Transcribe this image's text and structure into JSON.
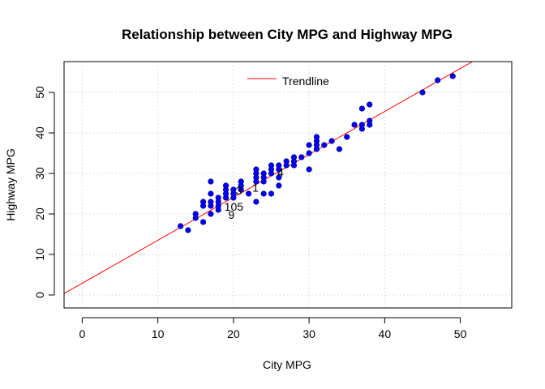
{
  "chart_data": {
    "type": "scatter",
    "title": "Relationship between City MPG and Highway MPG",
    "xlabel": "City MPG",
    "ylabel": "Highway MPG",
    "xlim": [
      -2.4,
      56.8
    ],
    "ylim": [
      -3.2,
      57.6
    ],
    "x_ticks": [
      0,
      10,
      20,
      30,
      40,
      50
    ],
    "y_ticks": [
      0,
      10,
      20,
      30,
      40,
      50
    ],
    "grid": true,
    "legend": {
      "position": "top-center",
      "entries": [
        "Trendline"
      ]
    },
    "trendline": {
      "color": "#ff0000",
      "intercept": 2.9,
      "slope": 1.06
    },
    "point_color": "#0000ff",
    "series": [
      {
        "points": [
          [
            13,
            17
          ],
          [
            14,
            16
          ],
          [
            15,
            19
          ],
          [
            15,
            20
          ],
          [
            16,
            18
          ],
          [
            16,
            22
          ],
          [
            16,
            23
          ],
          [
            17,
            20
          ],
          [
            17,
            22
          ],
          [
            17,
            23
          ],
          [
            17,
            25
          ],
          [
            17,
            28
          ],
          [
            18,
            21
          ],
          [
            18,
            22
          ],
          [
            18,
            23
          ],
          [
            18,
            24
          ],
          [
            19,
            24
          ],
          [
            19,
            25
          ],
          [
            19,
            26
          ],
          [
            19,
            27
          ],
          [
            20,
            24
          ],
          [
            20,
            25
          ],
          [
            20,
            26
          ],
          [
            21,
            26
          ],
          [
            21,
            27
          ],
          [
            21,
            28
          ],
          [
            22,
            25
          ],
          [
            23,
            23
          ],
          [
            23,
            28
          ],
          [
            23,
            29
          ],
          [
            23,
            30
          ],
          [
            23,
            31
          ],
          [
            24,
            25
          ],
          [
            24,
            28
          ],
          [
            24,
            29
          ],
          [
            24,
            30
          ],
          [
            25,
            25
          ],
          [
            25,
            30
          ],
          [
            25,
            31
          ],
          [
            25,
            32
          ],
          [
            26,
            27
          ],
          [
            26,
            29
          ],
          [
            26,
            31
          ],
          [
            26,
            32
          ],
          [
            27,
            32
          ],
          [
            27,
            33
          ],
          [
            28,
            32
          ],
          [
            28,
            33
          ],
          [
            28,
            34
          ],
          [
            29,
            34
          ],
          [
            30,
            31
          ],
          [
            30,
            35
          ],
          [
            30,
            37
          ],
          [
            31,
            36
          ],
          [
            31,
            37
          ],
          [
            31,
            38
          ],
          [
            31,
            39
          ],
          [
            32,
            37
          ],
          [
            33,
            38
          ],
          [
            34,
            36
          ],
          [
            35,
            39
          ],
          [
            36,
            42
          ],
          [
            37,
            41
          ],
          [
            37,
            42
          ],
          [
            37,
            46
          ],
          [
            38,
            42
          ],
          [
            38,
            43
          ],
          [
            38,
            47
          ],
          [
            45,
            50
          ],
          [
            47,
            53
          ],
          [
            49,
            54
          ]
        ]
      }
    ],
    "point_labels": [
      {
        "text": "1",
        "x": 22.5,
        "y": 26.5
      },
      {
        "text": "3",
        "x": 20.3,
        "y": 25.8
      },
      {
        "text": "4",
        "x": 25.8,
        "y": 30.3
      },
      {
        "text": "105",
        "x": 18.8,
        "y": 21.8
      },
      {
        "text": "9",
        "x": 19.3,
        "y": 19.8
      }
    ]
  }
}
